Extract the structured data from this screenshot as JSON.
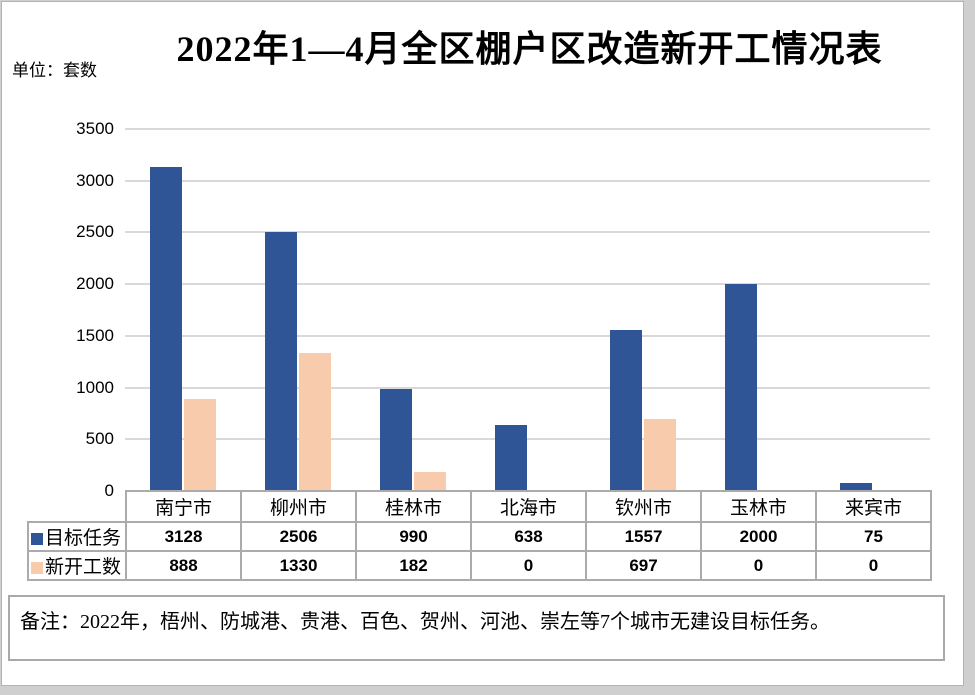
{
  "page": {
    "unit_label": "单位：套数",
    "title": "2022年1—4月全区棚户区改造新开工情况表",
    "note": "备注：2022年，梧州、防城港、贵港、百色、贺州、河池、崇左等7个城市无建设目标任务。"
  },
  "chart_data": {
    "type": "bar",
    "title": "2022年1—4月全区棚户区改造新开工情况表",
    "unit": "单位：套数",
    "categories": [
      "南宁市",
      "柳州市",
      "桂林市",
      "北海市",
      "钦州市",
      "玉林市",
      "来宾市"
    ],
    "series": [
      {
        "name": "目标任务",
        "color": "#2F5597",
        "values": [
          3128,
          2506,
          990,
          638,
          1557,
          2000,
          75
        ]
      },
      {
        "name": "新开工数",
        "color": "#F8CBAD",
        "values": [
          888,
          1330,
          182,
          0,
          697,
          0,
          0
        ]
      }
    ],
    "ylim": [
      0,
      3500
    ],
    "ytick_step": 500,
    "grid": true,
    "gridline_color": "#d9d9d9",
    "legend_position": "table-left",
    "data_table_shown": true
  }
}
